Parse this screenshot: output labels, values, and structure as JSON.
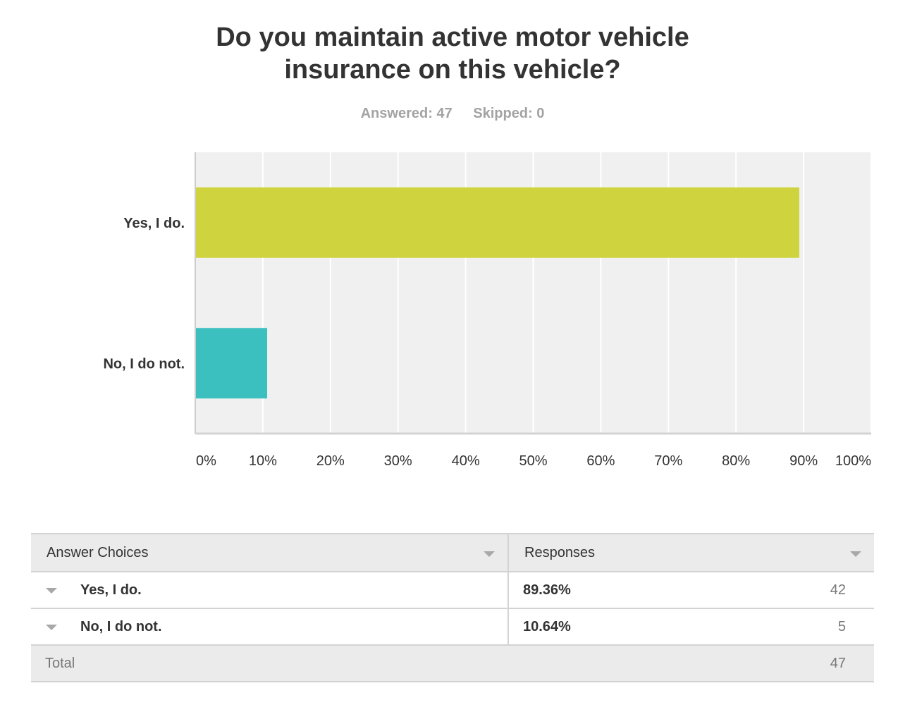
{
  "question": {
    "title_line1": "Do you maintain active motor vehicle",
    "title_line2": "insurance on this vehicle?",
    "answered": "Answered: 47",
    "skipped": "Skipped: 0"
  },
  "chart_data": {
    "type": "bar",
    "orientation": "horizontal",
    "categories": [
      "Yes, I do.",
      "No, I do not."
    ],
    "values": [
      89.36,
      10.64
    ],
    "colors": [
      "#cfd43e",
      "#3bbfbf"
    ],
    "xlim": [
      0,
      100
    ],
    "x_ticks": [
      "0%",
      "10%",
      "20%",
      "30%",
      "40%",
      "50%",
      "60%",
      "70%",
      "80%",
      "90%",
      "100%"
    ],
    "grid": true,
    "background": "#f0f0f0"
  },
  "table": {
    "col_answer": "Answer Choices",
    "col_responses": "Responses",
    "rows": [
      {
        "choice": "Yes, I do.",
        "percent": "89.36%",
        "count": "42"
      },
      {
        "choice": "No, I do not.",
        "percent": "10.64%",
        "count": "5"
      }
    ],
    "total_label": "Total",
    "total_count": "47"
  }
}
